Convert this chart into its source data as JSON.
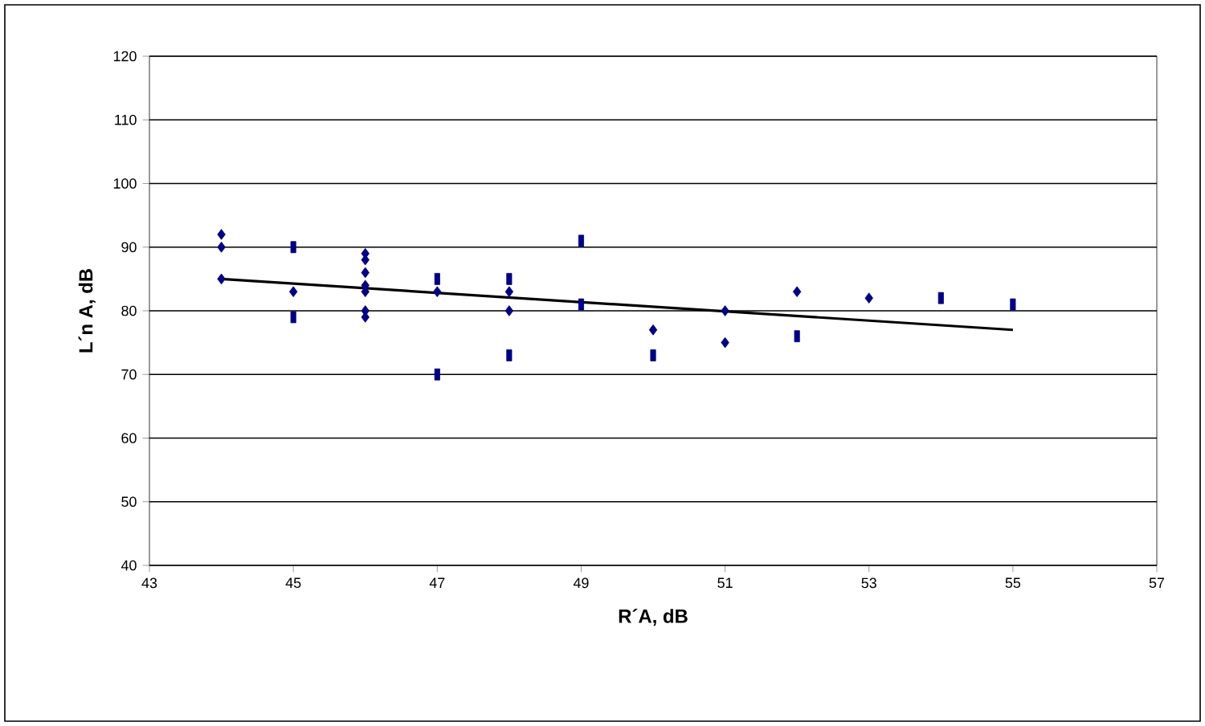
{
  "chart_data": {
    "type": "scatter",
    "xlabel": "R´A, dB",
    "ylabel": "L´n A, dB",
    "xlim": [
      43,
      57
    ],
    "ylim": [
      40,
      120
    ],
    "xticks": [
      43,
      45,
      47,
      49,
      51,
      53,
      55,
      57
    ],
    "yticks": [
      40,
      50,
      60,
      70,
      80,
      90,
      100,
      110,
      120
    ],
    "grid": "y",
    "marker": "diamond",
    "series": [
      {
        "color": "#000080",
        "x": [
          44,
          44,
          44,
          45,
          46,
          46,
          46,
          46,
          46,
          46,
          46,
          47,
          48,
          48,
          50,
          51,
          51,
          52,
          53
        ],
        "values": [
          92,
          90,
          85,
          83,
          89,
          88,
          86,
          84,
          83,
          80,
          79,
          83,
          83,
          80,
          77,
          80,
          75,
          83,
          82
        ]
      },
      {
        "color": "#000080",
        "marker": "square",
        "x": [
          45,
          45,
          47,
          47,
          48,
          48,
          49,
          49,
          50,
          52,
          54,
          55
        ],
        "values": [
          90,
          79,
          85,
          70,
          85,
          73,
          91,
          81,
          73,
          76,
          82,
          81
        ]
      },
      {
        "type": "line",
        "color": "#000000",
        "marker": "none",
        "x": [
          44,
          55
        ],
        "values": [
          85,
          77
        ]
      }
    ]
  }
}
